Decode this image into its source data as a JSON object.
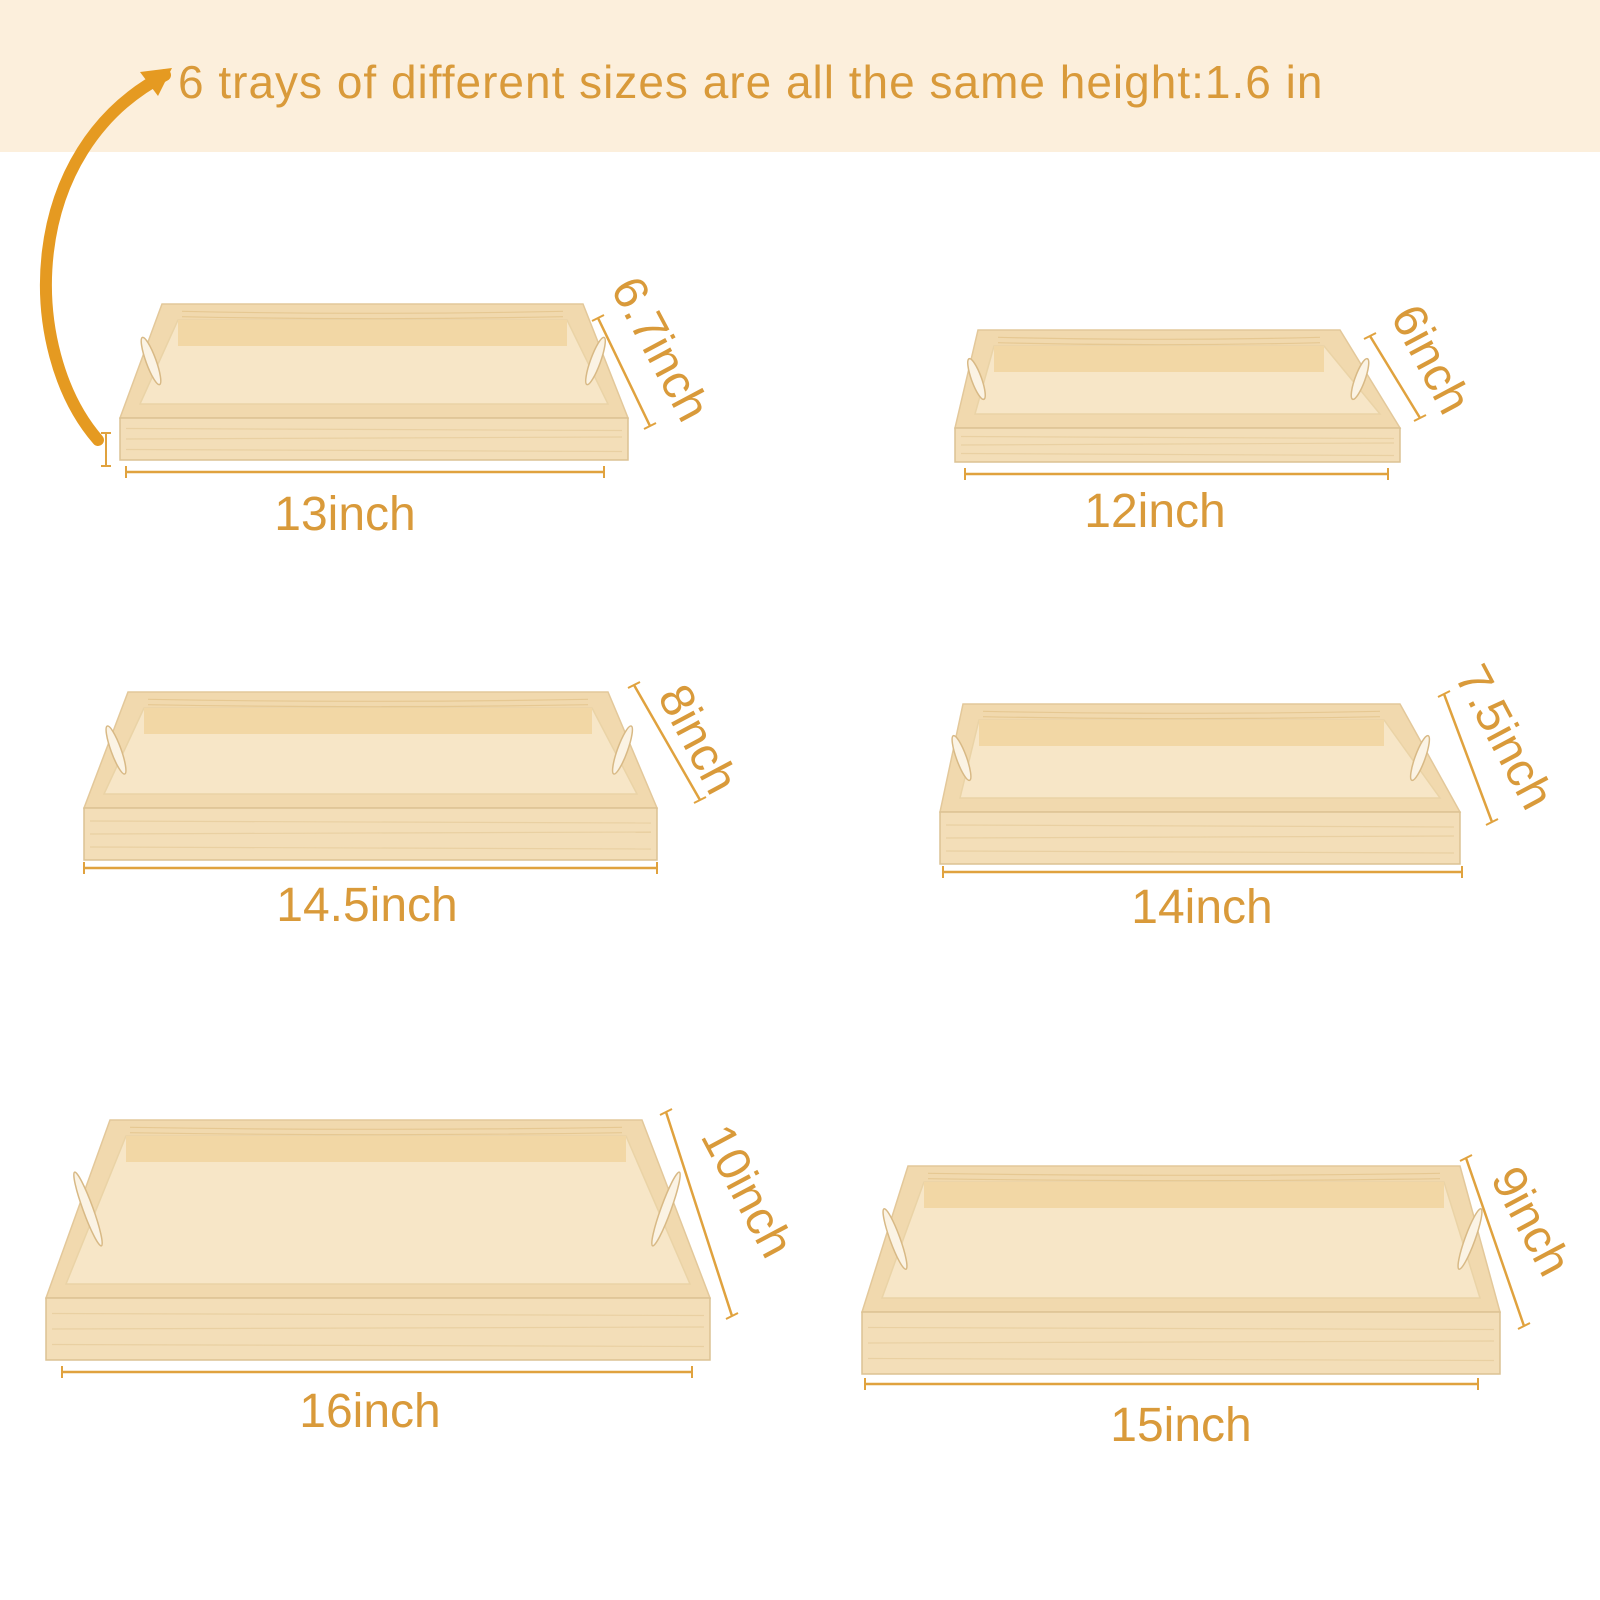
{
  "headline": "6 trays of different sizes are all the same height:1.6 in",
  "colors": {
    "banner": "#fcefdc",
    "accent": "#d99a3a",
    "wood_rim": "#f1d9ae",
    "wood_base": "#f3deb8",
    "wood_inner": "#f7e6c7"
  },
  "trays": [
    {
      "width_label": "13inch",
      "depth_label": "6.7inch"
    },
    {
      "width_label": "12inch",
      "depth_label": "6inch"
    },
    {
      "width_label": "14.5inch",
      "depth_label": "8inch"
    },
    {
      "width_label": "14inch",
      "depth_label": "7.5inch"
    },
    {
      "width_label": "16inch",
      "depth_label": "10inch"
    },
    {
      "width_label": "15inch",
      "depth_label": "9inch"
    }
  ]
}
